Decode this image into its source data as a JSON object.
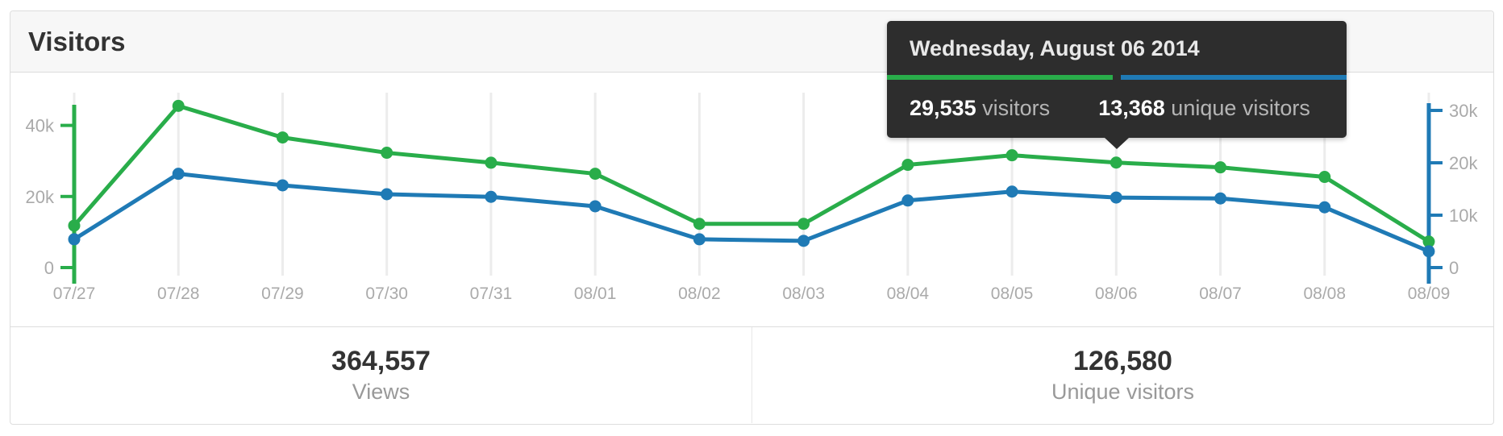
{
  "header": {
    "title": "Visitors"
  },
  "chart_data": {
    "type": "line",
    "x": [
      "07/27",
      "07/28",
      "07/29",
      "07/30",
      "07/31",
      "08/01",
      "08/02",
      "08/03",
      "08/04",
      "08/05",
      "08/06",
      "08/07",
      "08/08",
      "08/09"
    ],
    "series": [
      {
        "name": "visitors",
        "axis": "left",
        "color": "#29ad4a",
        "values": [
          11800,
          45500,
          36600,
          32300,
          29500,
          26400,
          12300,
          12300,
          28900,
          31600,
          29535,
          28200,
          25500,
          7300
        ]
      },
      {
        "name": "unique visitors",
        "axis": "right",
        "color": "#1f7ab5",
        "values": [
          5400,
          17900,
          15700,
          14000,
          13500,
          11700,
          5400,
          5100,
          12800,
          14500,
          13368,
          13200,
          11500,
          3100
        ]
      }
    ],
    "left_axis": {
      "color": "#29ad4a",
      "max": 40000,
      "ticks": [
        {
          "value": 0,
          "label": "0"
        },
        {
          "value": 20000,
          "label": "20k"
        },
        {
          "value": 40000,
          "label": "40k"
        }
      ]
    },
    "right_axis": {
      "color": "#1f7ab5",
      "max": 30000,
      "ticks": [
        {
          "value": 0,
          "label": "0"
        },
        {
          "value": 10000,
          "label": "10k"
        },
        {
          "value": 20000,
          "label": "20k"
        },
        {
          "value": 30000,
          "label": "30k"
        }
      ]
    },
    "grid": true,
    "grid_color": "#ececec",
    "label_color": "#aaaaaa",
    "legend_position": "none",
    "title": "Visitors"
  },
  "tooltip": {
    "title": "Wednesday, August 06 2014",
    "primary_value": "29,535",
    "primary_label": "visitors",
    "secondary_value": "13,368",
    "secondary_label": "unique visitors",
    "anchor_date": "08/06",
    "primary_color": "#29ad4a",
    "secondary_color": "#1f7ab5"
  },
  "summary": [
    {
      "value": "364,557",
      "label": "Views"
    },
    {
      "value": "126,580",
      "label": "Unique visitors"
    }
  ]
}
